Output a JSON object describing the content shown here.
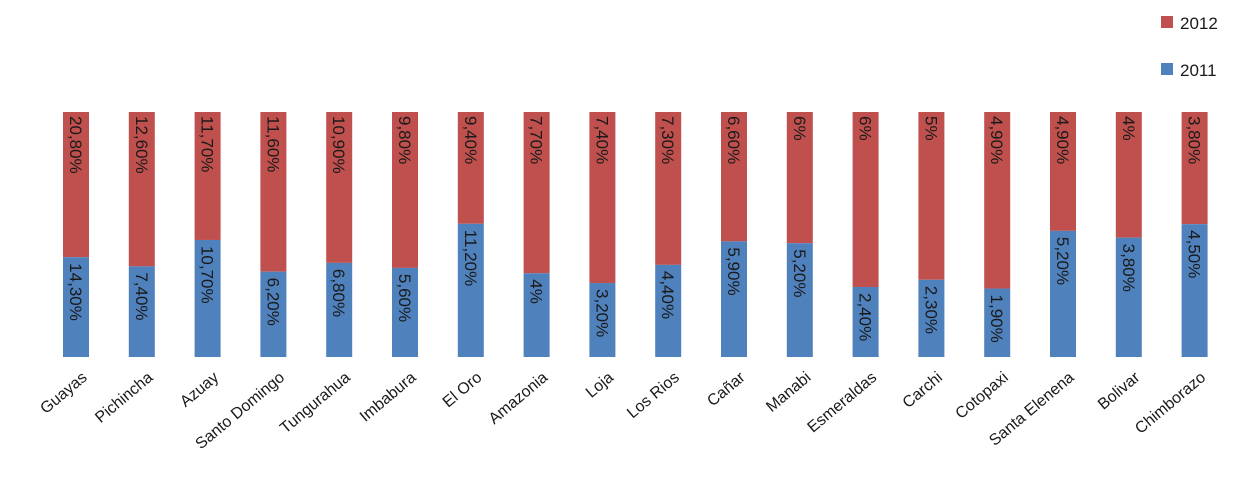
{
  "chart_data": {
    "type": "bar",
    "stacked": true,
    "categories": [
      "Guayas",
      "Pichincha",
      "Azuay",
      "Santo Domingo",
      "Tungurahua",
      "Imbabura",
      "El Oro",
      "Amazonia",
      "Loja",
      "Los Rios",
      "Cañar",
      "Manabi",
      "Esmeraldas",
      "Carchi",
      "Cotopaxi",
      "Santa Elenena",
      "Bolivar",
      "Chimborazo"
    ],
    "series": [
      {
        "name": "2011",
        "color": "#4f81bd",
        "values": [
          14.3,
          7.4,
          10.7,
          6.2,
          6.8,
          5.6,
          11.2,
          4,
          3.2,
          4.4,
          5.9,
          5.2,
          2.4,
          2.3,
          1.9,
          5.2,
          3.8,
          4.5
        ],
        "labels": [
          "14,30%",
          "7,40%",
          "10,70%",
          "6,20%",
          "6,80%",
          "5,60%",
          "11,20%",
          "4%",
          "3,20%",
          "4,40%",
          "5,90%",
          "5,20%",
          "2,40%",
          "2,30%",
          "1,90%",
          "5,20%",
          "3,80%",
          "4,50%"
        ]
      },
      {
        "name": "2012",
        "color": "#c0504d",
        "values": [
          20.8,
          12.6,
          11.7,
          11.6,
          10.9,
          9.8,
          9.4,
          7.7,
          7.4,
          7.3,
          6.6,
          6,
          6,
          5,
          4.9,
          4.9,
          4,
          3.8
        ],
        "labels": [
          "20,80%",
          "12,60%",
          "11,70%",
          "11,60%",
          "10,90%",
          "9,80%",
          "9,40%",
          "7,70%",
          "7,40%",
          "7,30%",
          "6,60%",
          "6%",
          "6%",
          "5%",
          "4,90%",
          "4,90%",
          "4%",
          "3,80%"
        ]
      }
    ],
    "normalized": true,
    "legend": "top-right",
    "grid": false,
    "title": "",
    "xlabel": "",
    "ylabel": ""
  }
}
